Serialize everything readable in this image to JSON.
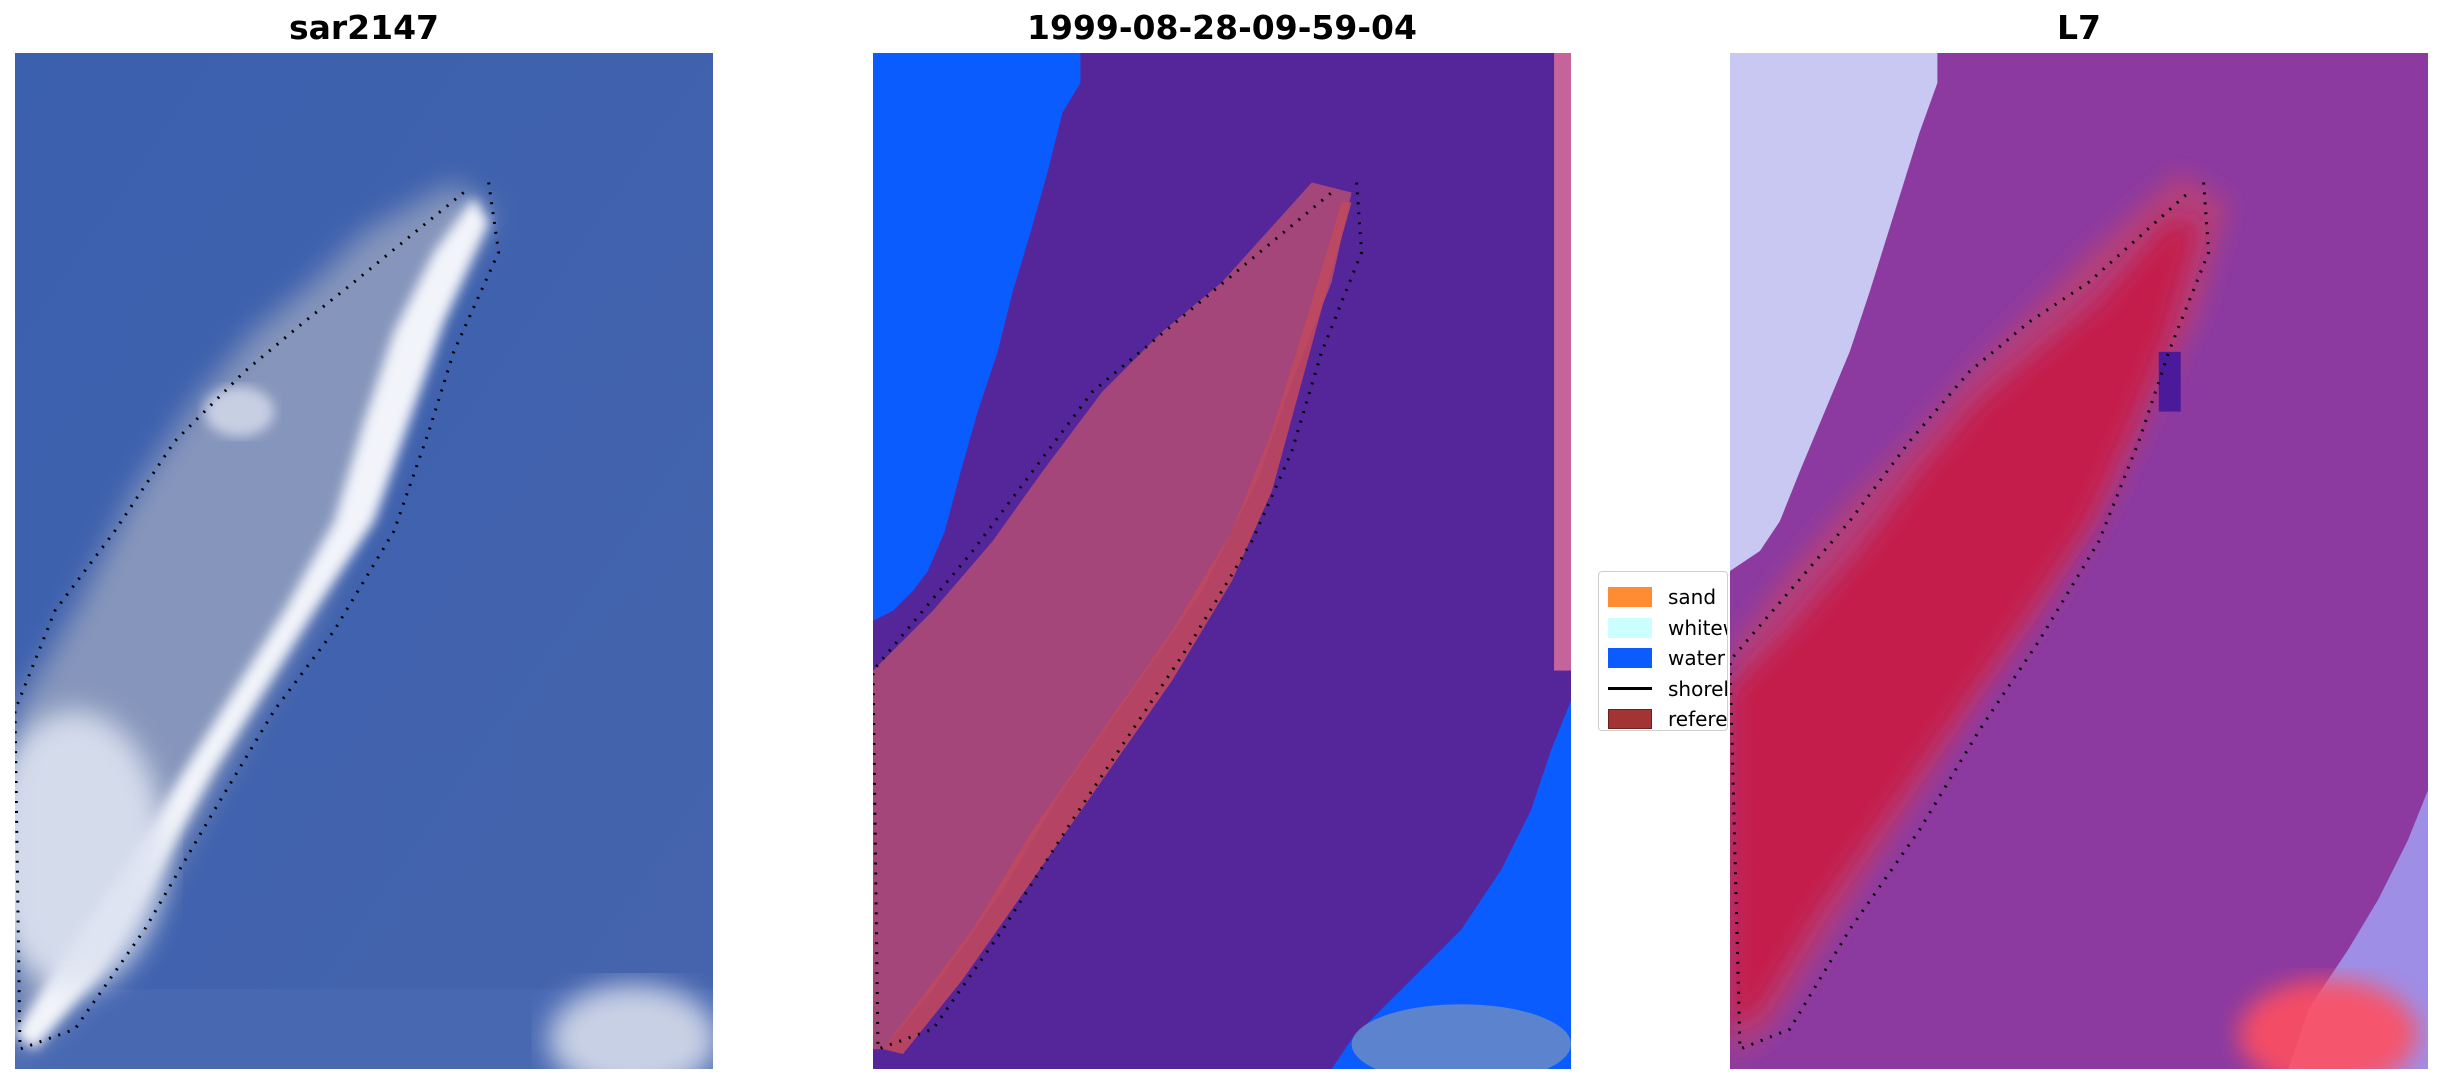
{
  "panels": [
    {
      "id": "rgb",
      "title": "sar2147"
    },
    {
      "id": "classified",
      "title": "1999-08-28-09-59-04"
    },
    {
      "id": "index",
      "title": "L7"
    }
  ],
  "legend": {
    "items": [
      {
        "label": "sand",
        "color": "#ff8c33",
        "kind": "patch"
      },
      {
        "label": "whitewater",
        "color": "#ccffff",
        "kind": "patch"
      },
      {
        "label": "water",
        "color": "#0a5cff",
        "kind": "patch"
      },
      {
        "label": "shoreline",
        "color": "#000000",
        "kind": "line"
      },
      {
        "label": "reference",
        "color": "#a33434",
        "kind": "patch"
      }
    ]
  },
  "colors": {
    "ocean_rgb": "#3f62ad",
    "sand_rgb": "#cfd8ea",
    "classified_water": "#0a5cff",
    "classified_background": "#55269a",
    "classified_sand": "#b4456a",
    "index_water": "#8c3aa0",
    "index_land": "#c41a4c",
    "index_cloud": "#c8c8f2"
  }
}
